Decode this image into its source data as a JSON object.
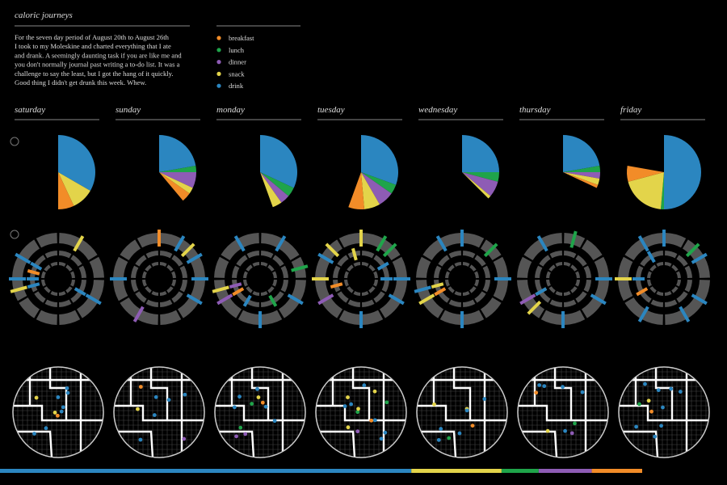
{
  "header": {
    "title": "caloric journeys",
    "intro": [
      "For the seven day period of August 20th to August 26th",
      "I took to my Moleskine and charted everything that I ate",
      "and drank. A seemingly daunting task if you are like me and",
      "you don't normally journal past writing a to-do list. It was a",
      "challenge to say the least, but I got the hang of it quickly.",
      "Good thing I didn't get drunk this week. Whew."
    ]
  },
  "legend": [
    {
      "name": "breakfast",
      "color": "#f28c28"
    },
    {
      "name": "lunch",
      "color": "#1fa44a"
    },
    {
      "name": "dinner",
      "color": "#8e5cb5"
    },
    {
      "name": "snack",
      "color": "#e3d44a"
    },
    {
      "name": "drink",
      "color": "#2b86c0"
    }
  ],
  "days": [
    {
      "name": "saturday",
      "pie": [
        25,
        0,
        0,
        35,
        120
      ],
      "clock": [
        [
          9.5
        ],
        [],
        [],
        [
          20.5,
          13
        ],
        [
          21,
          22,
          8.5,
          9,
          10,
          4,
          16
        ]
      ]
    },
    {
      "name": "sunday",
      "pie": [
        15,
        10,
        25,
        10,
        80
      ],
      "clock": [
        [
          12
        ],
        [],
        [
          19
        ],
        [
          13.5
        ],
        [
          13,
          14,
          15,
          16,
          21
        ]
      ]
    },
    {
      "name": "monday",
      "pie": [
        0,
        15,
        15,
        15,
        115
      ],
      "clock": [
        [
          8
        ],
        [
          14.5,
          5
        ],
        [
          20,
          8.5
        ],
        [
          20.5
        ],
        [
          23,
          13,
          16,
          18,
          7
        ]
      ]
    },
    {
      "name": "tuesday",
      "pie": [
        25,
        15,
        25,
        25,
        110
      ],
      "clock": [
        [
          8.5
        ],
        [
          13,
          13.5
        ],
        [
          20
        ],
        [
          21,
          22.5,
          11.5,
          12
        ],
        [
          22,
          18,
          15,
          16,
          2,
          3
        ]
      ]
    },
    {
      "name": "wednesday",
      "pie": [
        0,
        15,
        25,
        5,
        90
      ],
      "clock": [
        [
          8
        ],
        [
          13.5
        ],
        [],
        [
          20,
          8.5
        ],
        [
          12,
          23,
          15,
          18,
          20.5
        ]
      ]
    },
    {
      "name": "thursday",
      "pie": [
        5,
        10,
        10,
        10,
        80
      ],
      "clock": [
        [
          8
        ],
        [
          12.5
        ],
        [
          20
        ],
        [
          19.5
        ],
        [
          23,
          15,
          16,
          18,
          8
        ]
      ]
    },
    {
      "name": "friday",
      "pie": [
        25,
        5,
        0,
        70,
        180
      ],
      "clock": [
        [
          8
        ],
        [
          13.5
        ],
        [],
        [
          21
        ],
        [
          23,
          12,
          14,
          16,
          17,
          19,
          9,
          11
        ]
      ]
    }
  ]
}
